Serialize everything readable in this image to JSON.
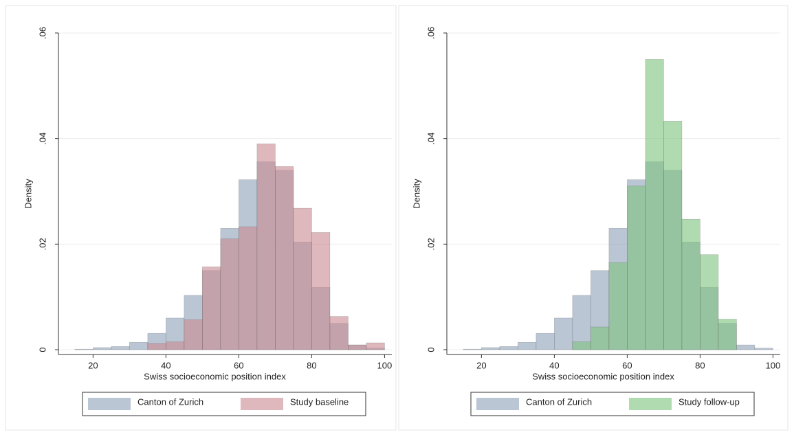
{
  "chart_data": [
    {
      "type": "histogram",
      "xlabel": "Swiss socioeconomic position index",
      "ylabel": "Density",
      "bins": [
        15,
        20,
        25,
        30,
        35,
        40,
        45,
        50,
        55,
        60,
        65,
        70,
        75,
        80,
        85,
        90,
        95,
        100
      ],
      "series": [
        {
          "name": "Canton of Zurich",
          "color": "#8fa3b9",
          "values": [
            0.0001,
            0.0004,
            0.0006,
            0.0014,
            0.0031,
            0.006,
            0.0103,
            0.015,
            0.023,
            0.0322,
            0.0356,
            0.034,
            0.0204,
            0.0118,
            0.005,
            0.0009,
            0.0003
          ]
        },
        {
          "name": "Study baseline",
          "color": "#c98d93",
          "values": [
            0,
            0,
            0,
            0,
            0.0012,
            0.0015,
            0.0057,
            0.0157,
            0.021,
            0.0233,
            0.039,
            0.0347,
            0.0268,
            0.0222,
            0.0063,
            0.0009,
            0.0013
          ]
        }
      ],
      "xlim": [
        10.5,
        102
      ],
      "xticks": [
        20,
        40,
        60,
        80,
        100
      ],
      "ylim": [
        0,
        0.06
      ],
      "yticks": [
        0,
        {
          "value": 0.02,
          "label": ".02"
        },
        {
          "value": 0.04,
          "label": ".04"
        },
        {
          "value": 0.06,
          "label": ".06"
        }
      ],
      "grid": true,
      "legend": "bottom"
    },
    {
      "type": "histogram",
      "xlabel": "Swiss socioeconomic position index",
      "ylabel": "Density",
      "bins": [
        15,
        20,
        25,
        30,
        35,
        40,
        45,
        50,
        55,
        60,
        65,
        70,
        75,
        80,
        85,
        90,
        95,
        100
      ],
      "series": [
        {
          "name": "Canton of Zurich",
          "color": "#8fa3b9",
          "values": [
            0.0001,
            0.0004,
            0.0006,
            0.0014,
            0.0031,
            0.006,
            0.0103,
            0.015,
            0.023,
            0.0322,
            0.0356,
            0.034,
            0.0204,
            0.0118,
            0.005,
            0.0009,
            0.0003
          ]
        },
        {
          "name": "Study follow-up",
          "color": "#7fc47f",
          "values": [
            0,
            0,
            0,
            0,
            0,
            0,
            0.0015,
            0.0043,
            0.0165,
            0.031,
            0.055,
            0.0433,
            0.0247,
            0.018,
            0.0058,
            0,
            0
          ]
        }
      ],
      "xlim": [
        10.5,
        102
      ],
      "xticks": [
        20,
        40,
        60,
        80,
        100
      ],
      "ylim": [
        0,
        0.06
      ],
      "yticks": [
        0,
        {
          "value": 0.02,
          "label": ".02"
        },
        {
          "value": 0.04,
          "label": ".04"
        },
        {
          "value": 0.06,
          "label": ".06"
        }
      ],
      "grid": true,
      "legend": "bottom"
    }
  ]
}
